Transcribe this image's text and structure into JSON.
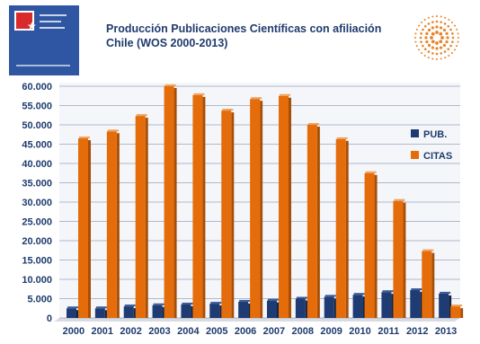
{
  "chart_data": {
    "type": "bar",
    "title_line1": "Producción Publicaciones Científicas con afiliación",
    "title_line2": "Chile (WOS 2000-2013)",
    "categories": [
      "2000",
      "2001",
      "2002",
      "2003",
      "2004",
      "2005",
      "2006",
      "2007",
      "2008",
      "2009",
      "2010",
      "2011",
      "2012",
      "2013"
    ],
    "series": [
      {
        "name": "PUB.",
        "color": "#1f3b73",
        "values": [
          2500,
          2500,
          3000,
          3300,
          3500,
          3700,
          4200,
          4500,
          5000,
          5500,
          6000,
          6700,
          7200,
          6300
        ]
      },
      {
        "name": "CITAS",
        "color": "#e46c0a",
        "values": [
          46500,
          48300,
          52300,
          60000,
          57700,
          53700,
          56700,
          57500,
          50000,
          46300,
          37500,
          30300,
          17300,
          3000
        ]
      }
    ],
    "yticks": [
      "0",
      "5.000",
      "10.000",
      "15.000",
      "20.000",
      "25.000",
      "30.000",
      "35.000",
      "40.000",
      "45.000",
      "50.000",
      "55.000",
      "60.000"
    ],
    "ylim": [
      0,
      60000
    ],
    "grid": true,
    "legend_position": "right"
  }
}
